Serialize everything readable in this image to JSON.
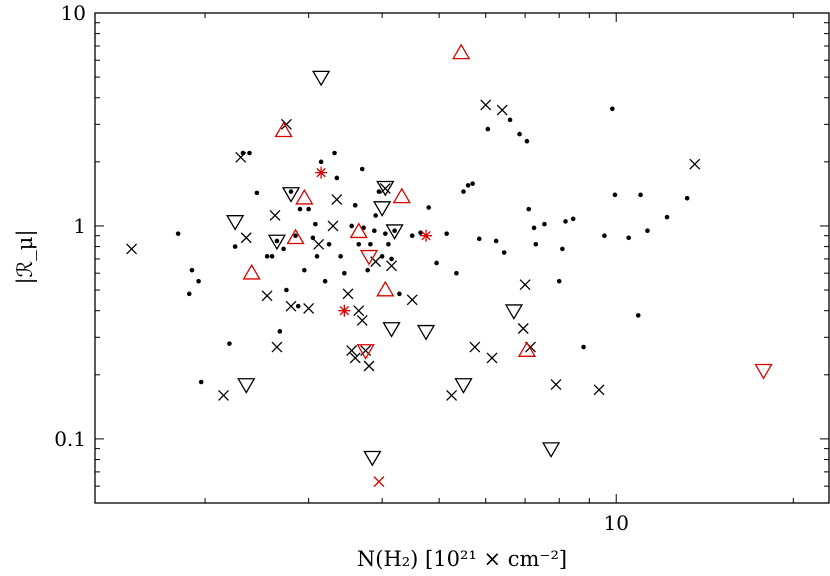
{
  "chart_data": {
    "type": "scatter",
    "title": "",
    "xlabel": "N(H₂) [10²¹ × cm⁻²]",
    "ylabel": "|ℛ_μ|",
    "xscale": "log",
    "yscale": "log",
    "xlim": [
      1.3,
      23
    ],
    "ylim": [
      0.05,
      10
    ],
    "xticks": [
      {
        "value": 10,
        "label": "10"
      }
    ],
    "yticks": [
      {
        "value": 0.1,
        "label": "0.1"
      },
      {
        "value": 1,
        "label": "1"
      },
      {
        "value": 10,
        "label": "10"
      }
    ],
    "grid": false,
    "legend": "none",
    "series": [
      {
        "marker": "dot",
        "color": "#000000",
        "points": [
          [
            1.8,
            0.92
          ],
          [
            1.88,
            0.48
          ],
          [
            1.9,
            0.62
          ],
          [
            1.95,
            0.55
          ],
          [
            1.97,
            0.185
          ],
          [
            2.2,
            0.28
          ],
          [
            2.25,
            0.8
          ],
          [
            2.32,
            2.2
          ],
          [
            2.38,
            2.2
          ],
          [
            2.45,
            1.43
          ],
          [
            2.55,
            0.72
          ],
          [
            2.6,
            0.72
          ],
          [
            2.65,
            0.85
          ],
          [
            2.68,
            0.32
          ],
          [
            2.72,
            0.78
          ],
          [
            2.75,
            0.5
          ],
          [
            2.8,
            1.45
          ],
          [
            2.85,
            0.9
          ],
          [
            2.88,
            0.42
          ],
          [
            2.9,
            1.2
          ],
          [
            2.95,
            0.62
          ],
          [
            3.0,
            1.2
          ],
          [
            3.05,
            0.88
          ],
          [
            3.08,
            1.02
          ],
          [
            3.1,
            0.72
          ],
          [
            3.15,
            2.0
          ],
          [
            3.2,
            0.55
          ],
          [
            3.25,
            0.82
          ],
          [
            3.32,
            2.2
          ],
          [
            3.35,
            1.68
          ],
          [
            3.4,
            0.72
          ],
          [
            3.45,
            0.6
          ],
          [
            3.55,
            1.0
          ],
          [
            3.6,
            1.25
          ],
          [
            3.65,
            0.82
          ],
          [
            3.7,
            1.85
          ],
          [
            3.72,
            0.98
          ],
          [
            3.78,
            0.62
          ],
          [
            3.82,
            0.82
          ],
          [
            3.88,
            0.95
          ],
          [
            3.9,
            1.12
          ],
          [
            3.95,
            1.45
          ],
          [
            4.0,
            0.72
          ],
          [
            4.05,
            0.92
          ],
          [
            4.1,
            0.82
          ],
          [
            4.15,
            0.7
          ],
          [
            4.2,
            0.95
          ],
          [
            4.28,
            0.48
          ],
          [
            4.5,
            0.9
          ],
          [
            4.65,
            0.93
          ],
          [
            4.8,
            1.22
          ],
          [
            4.95,
            0.67
          ],
          [
            5.15,
            0.92
          ],
          [
            5.35,
            0.6
          ],
          [
            5.5,
            1.45
          ],
          [
            5.6,
            1.55
          ],
          [
            5.7,
            1.58
          ],
          [
            5.85,
            0.87
          ],
          [
            6.05,
            2.85
          ],
          [
            6.25,
            0.85
          ],
          [
            6.45,
            0.75
          ],
          [
            6.6,
            3.15
          ],
          [
            6.85,
            2.7
          ],
          [
            7.05,
            2.5
          ],
          [
            7.1,
            1.2
          ],
          [
            7.25,
            0.98
          ],
          [
            7.3,
            0.82
          ],
          [
            7.55,
            1.02
          ],
          [
            8.0,
            0.55
          ],
          [
            8.1,
            0.78
          ],
          [
            8.2,
            1.05
          ],
          [
            8.45,
            1.08
          ],
          [
            8.8,
            0.27
          ],
          [
            9.55,
            0.9
          ],
          [
            9.85,
            3.55
          ],
          [
            9.95,
            1.4
          ],
          [
            10.5,
            0.88
          ],
          [
            10.9,
            0.38
          ],
          [
            11.0,
            1.4
          ],
          [
            11.3,
            0.95
          ],
          [
            12.2,
            1.1
          ],
          [
            13.2,
            1.35
          ]
        ]
      },
      {
        "marker": "x",
        "color": "#000000",
        "points": [
          [
            1.5,
            0.78
          ],
          [
            2.15,
            0.16
          ],
          [
            2.3,
            2.1
          ],
          [
            2.35,
            0.88
          ],
          [
            2.55,
            0.47
          ],
          [
            2.63,
            1.12
          ],
          [
            2.65,
            0.27
          ],
          [
            2.75,
            3.0
          ],
          [
            2.8,
            0.42
          ],
          [
            3.0,
            0.41
          ],
          [
            3.12,
            0.82
          ],
          [
            3.3,
            1.0
          ],
          [
            3.35,
            1.33
          ],
          [
            3.5,
            0.48
          ],
          [
            3.55,
            0.26
          ],
          [
            3.6,
            0.24
          ],
          [
            3.65,
            0.4
          ],
          [
            3.7,
            0.36
          ],
          [
            3.75,
            0.26
          ],
          [
            3.8,
            0.22
          ],
          [
            3.9,
            0.68
          ],
          [
            4.05,
            1.5
          ],
          [
            4.15,
            0.65
          ],
          [
            4.5,
            0.45
          ],
          [
            5.25,
            0.16
          ],
          [
            5.75,
            0.27
          ],
          [
            6.0,
            3.7
          ],
          [
            6.15,
            0.24
          ],
          [
            6.4,
            3.5
          ],
          [
            6.95,
            0.33
          ],
          [
            7.0,
            0.53
          ],
          [
            7.15,
            0.27
          ],
          [
            7.9,
            0.18
          ],
          [
            9.35,
            0.17
          ],
          [
            13.6,
            1.95
          ]
        ]
      },
      {
        "marker": "triangle-up",
        "color": "#dd0000",
        "points": [
          [
            2.4,
            0.6
          ],
          [
            2.72,
            2.8
          ],
          [
            2.85,
            0.88
          ],
          [
            2.95,
            1.35
          ],
          [
            3.65,
            0.94
          ],
          [
            4.05,
            0.5
          ],
          [
            4.32,
            1.37
          ],
          [
            5.45,
            6.5
          ],
          [
            7.05,
            0.26
          ]
        ]
      },
      {
        "marker": "triangle-down",
        "color": "#000000",
        "points": [
          [
            2.25,
            1.05
          ],
          [
            2.35,
            0.18
          ],
          [
            2.65,
            0.85
          ],
          [
            2.8,
            1.42
          ],
          [
            3.15,
            5.0
          ],
          [
            3.85,
            0.082
          ],
          [
            4.0,
            1.22
          ],
          [
            4.05,
            1.52
          ],
          [
            4.15,
            0.33
          ],
          [
            4.2,
            0.95
          ],
          [
            4.75,
            0.32
          ],
          [
            5.5,
            0.18
          ],
          [
            6.7,
            0.4
          ],
          [
            7.75,
            0.09
          ]
        ]
      },
      {
        "marker": "triangle-down",
        "color": "#dd0000",
        "points": [
          [
            3.75,
            0.26
          ],
          [
            3.8,
            0.72
          ],
          [
            17.8,
            0.21
          ]
        ]
      },
      {
        "marker": "asterisk",
        "color": "#dd0000",
        "points": [
          [
            3.15,
            1.78
          ],
          [
            3.45,
            0.4
          ],
          [
            4.75,
            0.9
          ]
        ]
      },
      {
        "marker": "x",
        "color": "#dd0000",
        "points": [
          [
            3.95,
            0.063
          ]
        ]
      }
    ]
  }
}
